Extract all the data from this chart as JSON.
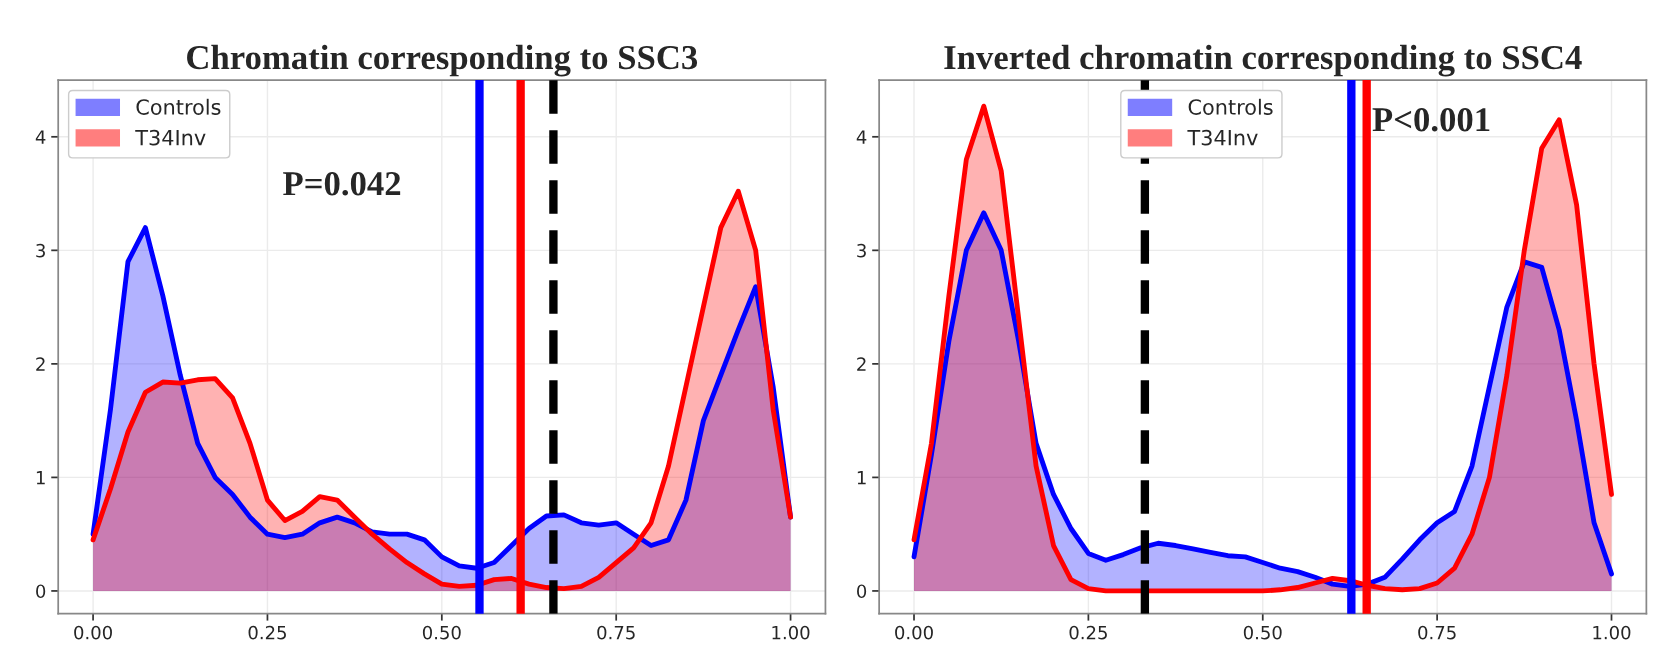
{
  "chart_data": [
    {
      "type": "area",
      "title": "Chromatin corresponding to SSC3",
      "x": [
        0,
        0.025,
        0.05,
        0.075,
        0.1,
        0.125,
        0.15,
        0.175,
        0.2,
        0.225,
        0.25,
        0.275,
        0.3,
        0.325,
        0.35,
        0.375,
        0.4,
        0.425,
        0.45,
        0.475,
        0.5,
        0.525,
        0.55,
        0.575,
        0.6,
        0.625,
        0.65,
        0.675,
        0.7,
        0.725,
        0.75,
        0.775,
        0.8,
        0.825,
        0.85,
        0.875,
        0.9,
        0.925,
        0.95,
        0.975,
        1.0
      ],
      "series": [
        {
          "name": "Controls",
          "color": "#0000ff",
          "values": [
            0.5,
            1.6,
            2.9,
            3.2,
            2.6,
            1.9,
            1.3,
            1.0,
            0.85,
            0.65,
            0.5,
            0.47,
            0.5,
            0.6,
            0.65,
            0.6,
            0.52,
            0.5,
            0.5,
            0.45,
            0.3,
            0.22,
            0.2,
            0.25,
            0.4,
            0.55,
            0.66,
            0.67,
            0.6,
            0.58,
            0.6,
            0.5,
            0.4,
            0.45,
            0.8,
            1.5,
            1.9,
            2.3,
            2.68,
            1.8,
            0.65
          ]
        },
        {
          "name": "T34Inv",
          "color": "#ff0000",
          "values": [
            0.45,
            0.9,
            1.4,
            1.75,
            1.84,
            1.83,
            1.86,
            1.87,
            1.7,
            1.3,
            0.8,
            0.62,
            0.7,
            0.83,
            0.8,
            0.65,
            0.5,
            0.37,
            0.25,
            0.15,
            0.06,
            0.04,
            0.05,
            0.1,
            0.11,
            0.06,
            0.03,
            0.02,
            0.04,
            0.12,
            0.25,
            0.38,
            0.6,
            1.1,
            1.8,
            2.5,
            3.2,
            3.52,
            3.0,
            1.6,
            0.65
          ]
        }
      ],
      "xlim": [
        -0.05,
        1.05
      ],
      "ylim": [
        -0.2,
        4.5
      ],
      "xticks": [
        {
          "value": 0,
          "label": "0.00"
        },
        {
          "value": 0.25,
          "label": "0.25"
        },
        {
          "value": 0.5,
          "label": "0.50"
        },
        {
          "value": 0.75,
          "label": "0.75"
        },
        {
          "value": 1,
          "label": "1.00"
        }
      ],
      "yticks": [
        0,
        1,
        2,
        3,
        4
      ],
      "ref_lines": [
        {
          "axis": "x",
          "value": 0.554,
          "color": "#0000ff",
          "line_style": "solid"
        },
        {
          "axis": "x",
          "value": 0.613,
          "color": "#ff0000",
          "line_style": "solid"
        },
        {
          "axis": "x",
          "value": 0.66,
          "color": "#000000",
          "line_style": "dashed"
        }
      ],
      "annotations": [
        "P=0.042"
      ],
      "grid": true,
      "legend": "top left"
    },
    {
      "type": "area",
      "title": "Inverted chromatin corresponding to SSC4",
      "x": [
        0,
        0.025,
        0.05,
        0.075,
        0.1,
        0.125,
        0.15,
        0.175,
        0.2,
        0.225,
        0.25,
        0.275,
        0.3,
        0.325,
        0.35,
        0.375,
        0.4,
        0.425,
        0.45,
        0.475,
        0.5,
        0.525,
        0.55,
        0.575,
        0.6,
        0.625,
        0.65,
        0.675,
        0.7,
        0.725,
        0.75,
        0.775,
        0.8,
        0.825,
        0.85,
        0.875,
        0.9,
        0.925,
        0.95,
        0.975,
        1.0
      ],
      "series": [
        {
          "name": "Controls",
          "color": "#0000ff",
          "values": [
            0.3,
            1.2,
            2.2,
            3.0,
            3.33,
            3.0,
            2.2,
            1.3,
            0.85,
            0.55,
            0.33,
            0.27,
            0.32,
            0.38,
            0.42,
            0.4,
            0.37,
            0.34,
            0.31,
            0.3,
            0.25,
            0.2,
            0.17,
            0.12,
            0.06,
            0.04,
            0.06,
            0.12,
            0.28,
            0.45,
            0.6,
            0.7,
            1.1,
            1.8,
            2.5,
            2.9,
            2.85,
            2.3,
            1.5,
            0.6,
            0.15
          ]
        },
        {
          "name": "T34Inv",
          "color": "#ff0000",
          "values": [
            0.45,
            1.3,
            2.6,
            3.8,
            4.27,
            3.7,
            2.4,
            1.1,
            0.4,
            0.1,
            0.02,
            0,
            0,
            0,
            0,
            0,
            0,
            0,
            0,
            0,
            0,
            0.01,
            0.03,
            0.07,
            0.11,
            0.09,
            0.05,
            0.02,
            0.01,
            0.02,
            0.07,
            0.2,
            0.5,
            1.0,
            1.9,
            3.0,
            3.9,
            4.15,
            3.4,
            2.0,
            0.85
          ]
        }
      ],
      "xlim": [
        -0.05,
        1.05
      ],
      "ylim": [
        -0.2,
        4.5
      ],
      "xticks": [
        {
          "value": 0,
          "label": "0.00"
        },
        {
          "value": 0.25,
          "label": "0.25"
        },
        {
          "value": 0.5,
          "label": "0.50"
        },
        {
          "value": 0.75,
          "label": "0.75"
        },
        {
          "value": 1,
          "label": "1.00"
        }
      ],
      "yticks": [
        0,
        1,
        2,
        3,
        4
      ],
      "ref_lines": [
        {
          "axis": "x",
          "value": 0.627,
          "color": "#0000ff",
          "line_style": "solid"
        },
        {
          "axis": "x",
          "value": 0.649,
          "color": "#ff0000",
          "line_style": "solid"
        },
        {
          "axis": "x",
          "value": 0.331,
          "color": "#000000",
          "line_style": "dashed"
        }
      ],
      "annotations": [
        "P<0.001"
      ],
      "grid": true,
      "legend": "top"
    }
  ]
}
